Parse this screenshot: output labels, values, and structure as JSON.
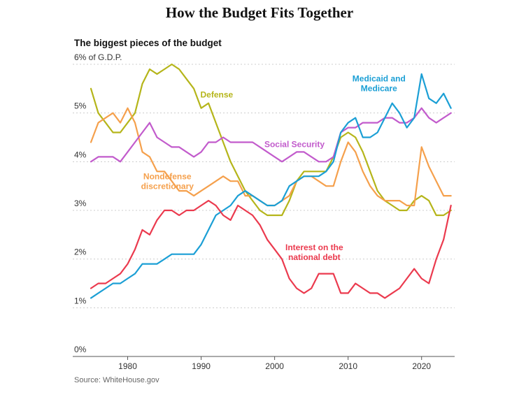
{
  "title": "How the Budget Fits Together",
  "source": "Source: WhiteHouse.gov",
  "colors": {
    "defense": "#b5b51a",
    "nondefense": "#f5a04c",
    "social_security": "#c25bcc",
    "medicaid": "#1b9fd5",
    "interest": "#eb3a4e",
    "grid": "#cccccc",
    "axis": "#555555"
  },
  "chart_data": {
    "type": "line",
    "title": "The biggest pieces of the budget",
    "xlabel": "",
    "ylabel": "6% of G.D.P.",
    "xlim": [
      1975,
      2024.5
    ],
    "ylim": [
      0,
      6
    ],
    "xticks": [
      1980,
      1990,
      2000,
      2010,
      2020
    ],
    "xtick_labels": [
      "1980",
      "1990",
      "2000",
      "2010",
      "2020"
    ],
    "yticks": [
      0,
      1,
      2,
      3,
      4,
      5,
      6
    ],
    "ytick_labels": [
      "0%",
      "1%",
      "2%",
      "3%",
      "4%",
      "5%",
      "6% of G.D.P."
    ],
    "grid": true,
    "legend": "direct labels",
    "x": [
      1975,
      1976,
      1977,
      1978,
      1979,
      1980,
      1981,
      1982,
      1983,
      1984,
      1985,
      1986,
      1987,
      1988,
      1989,
      1990,
      1991,
      1992,
      1993,
      1994,
      1995,
      1996,
      1997,
      1998,
      1999,
      2000,
      2001,
      2002,
      2003,
      2004,
      2005,
      2006,
      2007,
      2008,
      2009,
      2010,
      2011,
      2012,
      2013,
      2014,
      2015,
      2016,
      2017,
      2018,
      2019,
      2020,
      2021,
      2022,
      2023,
      2024
    ],
    "series": [
      {
        "name": "Defense",
        "key": "defense",
        "values": [
          5.5,
          5.0,
          4.8,
          4.6,
          4.6,
          4.8,
          5.0,
          5.6,
          5.9,
          5.8,
          5.9,
          6.0,
          5.9,
          5.7,
          5.5,
          5.1,
          5.2,
          4.8,
          4.4,
          4.0,
          3.7,
          3.4,
          3.2,
          3.0,
          2.9,
          2.9,
          2.9,
          3.2,
          3.6,
          3.8,
          3.8,
          3.8,
          3.8,
          4.1,
          4.5,
          4.6,
          4.5,
          4.2,
          3.8,
          3.4,
          3.2,
          3.1,
          3.0,
          3.0,
          3.2,
          3.3,
          3.2,
          2.9,
          2.9,
          3.0
        ]
      },
      {
        "name": "Nondefense discretionary",
        "key": "nondefense",
        "values": [
          4.4,
          4.8,
          4.9,
          5.0,
          4.8,
          5.1,
          4.8,
          4.2,
          4.1,
          3.8,
          3.8,
          3.6,
          3.4,
          3.4,
          3.3,
          3.4,
          3.5,
          3.6,
          3.7,
          3.6,
          3.6,
          3.3,
          3.3,
          3.2,
          3.1,
          3.1,
          3.2,
          3.3,
          3.6,
          3.7,
          3.7,
          3.6,
          3.5,
          3.5,
          4.0,
          4.4,
          4.2,
          3.8,
          3.5,
          3.3,
          3.2,
          3.2,
          3.2,
          3.1,
          3.1,
          4.3,
          3.9,
          3.6,
          3.3,
          3.3
        ]
      },
      {
        "name": "Social Security",
        "key": "social_security",
        "values": [
          4.0,
          4.1,
          4.1,
          4.1,
          4.0,
          4.2,
          4.4,
          4.6,
          4.8,
          4.5,
          4.4,
          4.3,
          4.3,
          4.2,
          4.1,
          4.2,
          4.4,
          4.4,
          4.5,
          4.4,
          4.4,
          4.4,
          4.4,
          4.3,
          4.2,
          4.1,
          4.0,
          4.1,
          4.2,
          4.2,
          4.1,
          4.0,
          4.0,
          4.1,
          4.6,
          4.7,
          4.7,
          4.8,
          4.8,
          4.8,
          4.9,
          4.9,
          4.8,
          4.8,
          4.9,
          5.1,
          4.9,
          4.8,
          4.9,
          5.0
        ]
      },
      {
        "name": "Medicaid and Medicare",
        "key": "medicaid",
        "values": [
          1.2,
          1.3,
          1.4,
          1.5,
          1.5,
          1.6,
          1.7,
          1.9,
          1.9,
          1.9,
          2.0,
          2.1,
          2.1,
          2.1,
          2.1,
          2.3,
          2.6,
          2.9,
          3.0,
          3.1,
          3.3,
          3.4,
          3.3,
          3.2,
          3.1,
          3.1,
          3.2,
          3.5,
          3.6,
          3.7,
          3.7,
          3.7,
          3.8,
          4.0,
          4.6,
          4.8,
          4.9,
          4.5,
          4.5,
          4.6,
          4.9,
          5.2,
          5.0,
          4.7,
          4.9,
          5.8,
          5.3,
          5.2,
          5.4,
          5.1
        ]
      },
      {
        "name": "Interest on the national debt",
        "key": "interest",
        "values": [
          1.4,
          1.5,
          1.5,
          1.6,
          1.7,
          1.9,
          2.2,
          2.6,
          2.5,
          2.8,
          3.0,
          3.0,
          2.9,
          3.0,
          3.0,
          3.1,
          3.2,
          3.1,
          2.9,
          2.8,
          3.1,
          3.0,
          2.9,
          2.7,
          2.4,
          2.2,
          2.0,
          1.6,
          1.4,
          1.3,
          1.4,
          1.7,
          1.7,
          1.7,
          1.3,
          1.3,
          1.5,
          1.4,
          1.3,
          1.3,
          1.2,
          1.3,
          1.4,
          1.6,
          1.8,
          1.6,
          1.5,
          2.0,
          2.4,
          3.1
        ]
      }
    ],
    "annotations": [
      {
        "key": "defense",
        "lines": [
          "Defense"
        ],
        "anchor": "start",
        "at_x": 1989.9,
        "at_y": 5.32
      },
      {
        "key": "medicaid",
        "lines": [
          "Medicaid and",
          "Medicare"
        ],
        "anchor": "middle",
        "at_x": 2014.2,
        "at_y": 5.65
      },
      {
        "key": "social_security",
        "lines": [
          "Social Security"
        ],
        "anchor": "middle",
        "at_x": 2002.7,
        "at_y": 4.3
      },
      {
        "key": "nondefense",
        "lines": [
          "Nondefense",
          "discretionary"
        ],
        "anchor": "middle",
        "at_x": 1985.4,
        "at_y": 3.64
      },
      {
        "key": "interest",
        "lines": [
          "Interest on the",
          "national debt"
        ],
        "anchor": "middle",
        "at_x": 2005.4,
        "at_y": 2.18
      }
    ]
  }
}
